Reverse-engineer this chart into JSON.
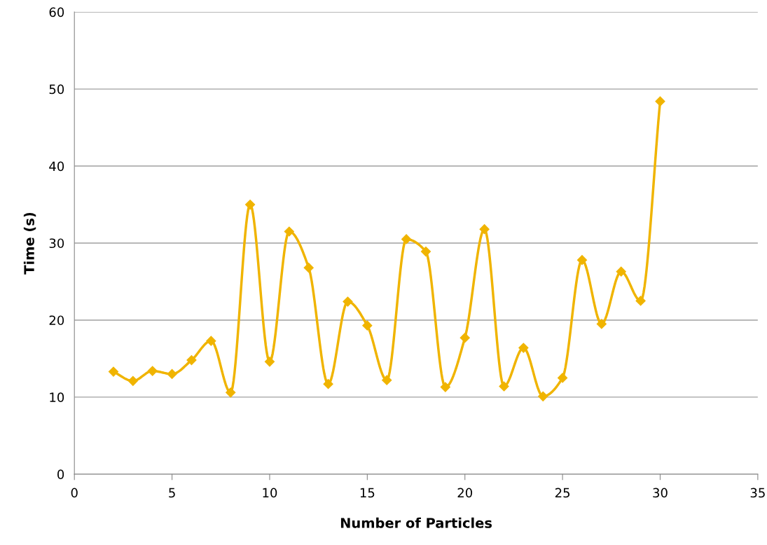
{
  "chart_data": {
    "type": "line",
    "xlabel": "Number of Particles",
    "ylabel": "Time (s)",
    "x": [
      2,
      3,
      4,
      5,
      6,
      7,
      8,
      9,
      10,
      11,
      12,
      13,
      14,
      15,
      16,
      17,
      18,
      19,
      20,
      21,
      22,
      23,
      24,
      25,
      26,
      27,
      28,
      29,
      30
    ],
    "series": [
      {
        "color": "#f0b400",
        "values": [
          13.3,
          12.1,
          13.4,
          13.0,
          14.8,
          17.3,
          10.6,
          35.0,
          14.6,
          31.5,
          26.8,
          11.7,
          22.4,
          19.3,
          12.2,
          30.5,
          28.9,
          11.3,
          17.7,
          31.8,
          11.4,
          16.4,
          10.1,
          12.5,
          27.8,
          19.5,
          26.3,
          22.5,
          48.4
        ]
      }
    ],
    "xlim": [
      0,
      35
    ],
    "xticks": [
      0,
      5,
      10,
      15,
      20,
      25,
      30,
      35
    ],
    "ylim": [
      0,
      60
    ],
    "yticks": [
      0,
      10,
      20,
      30,
      40,
      50,
      60
    ],
    "grid": "y",
    "marker": "diamond",
    "line_style": "solid",
    "legend": false
  }
}
